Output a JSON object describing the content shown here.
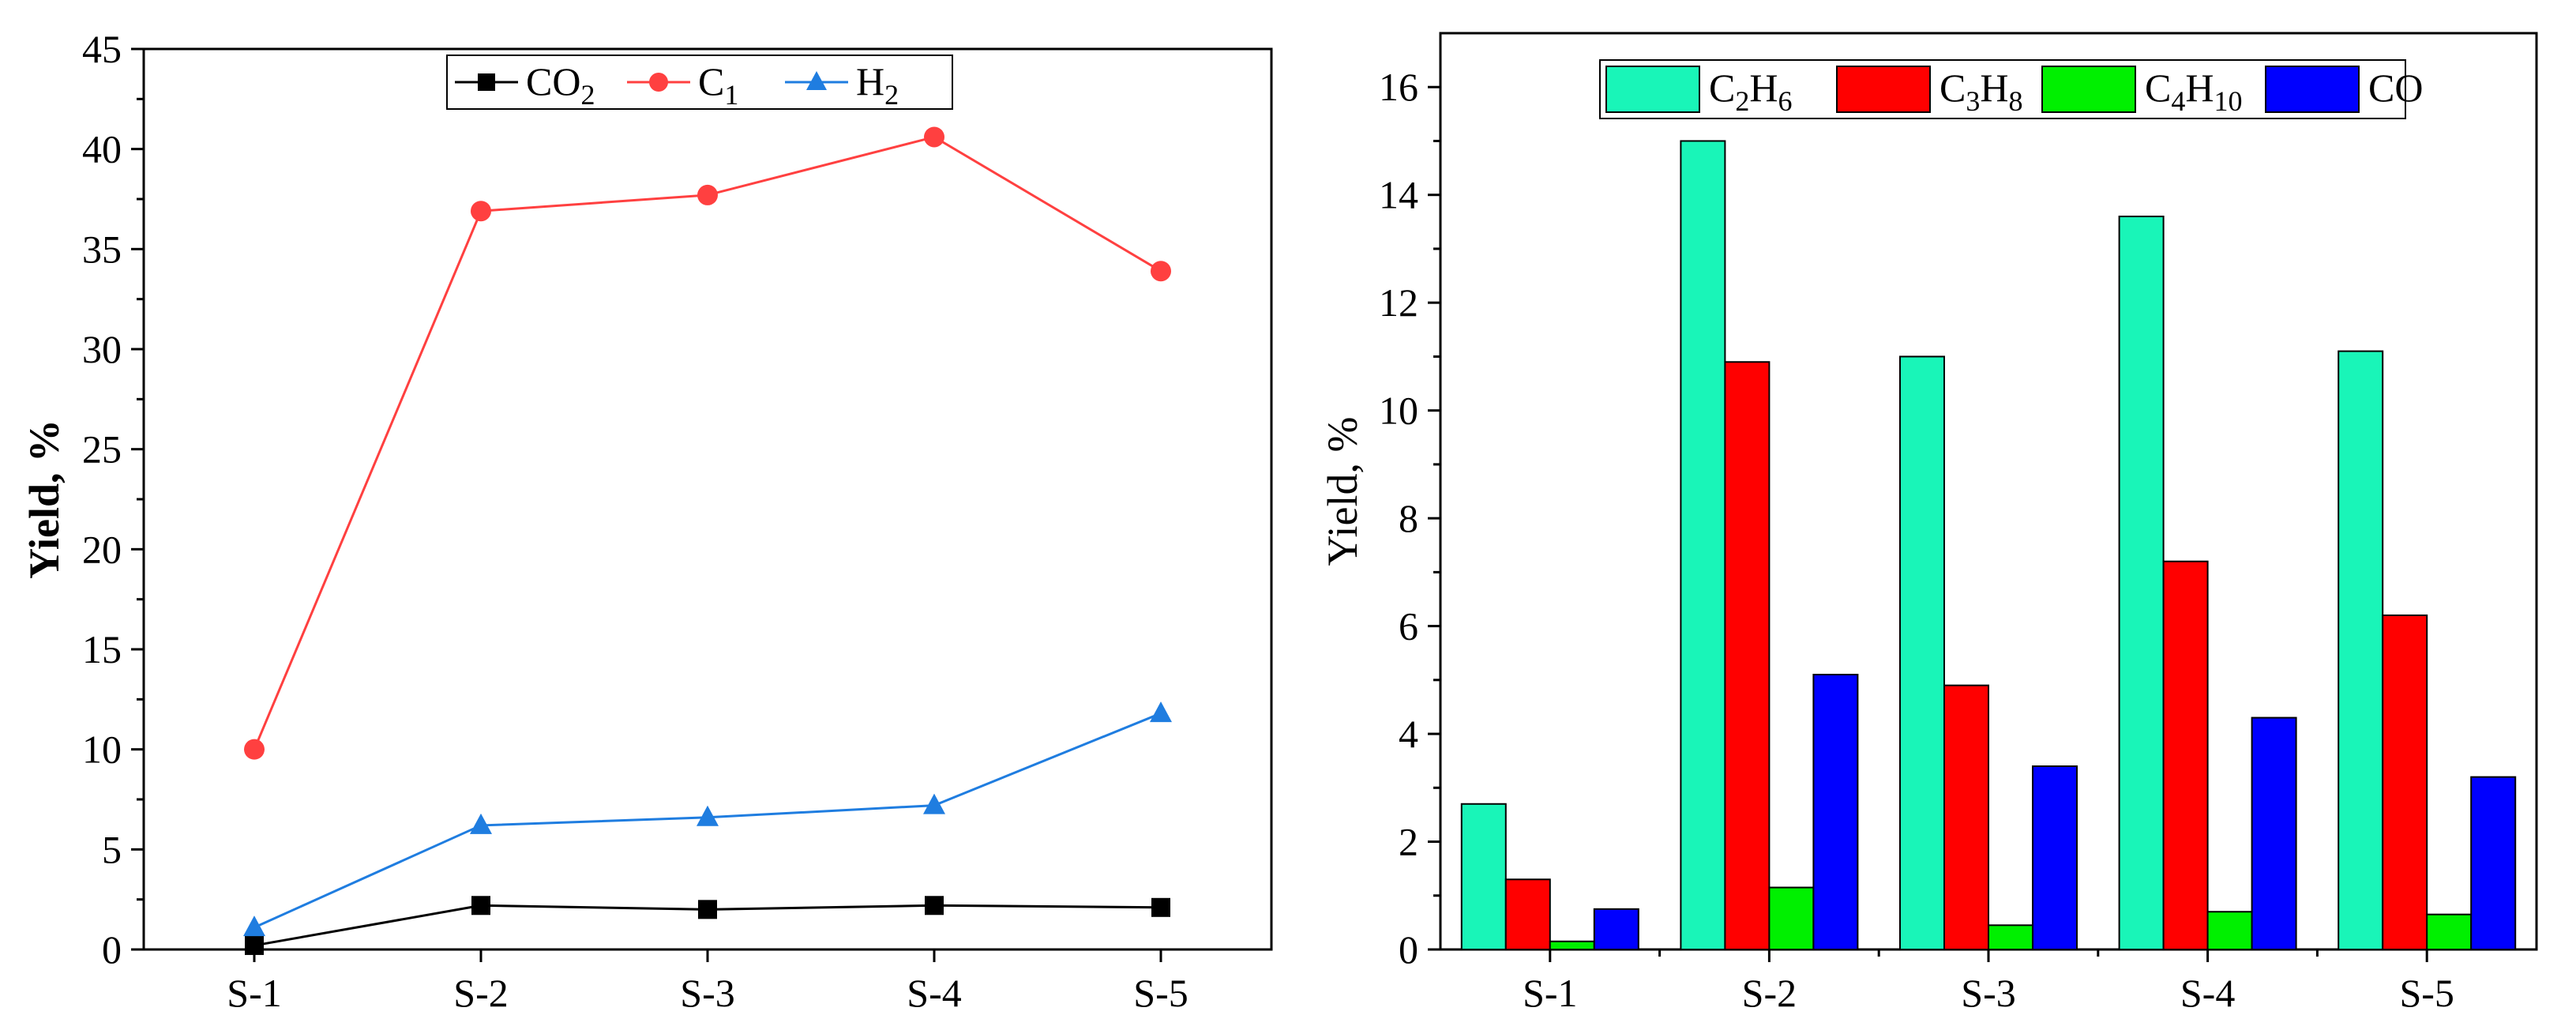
{
  "chart_data": [
    {
      "type": "line",
      "categories": [
        "S-1",
        "S-2",
        "S-3",
        "S-4",
        "S-5"
      ],
      "ylabel": "Yield, %",
      "xlabel": "",
      "ylim": [
        0,
        45
      ],
      "yticks": [
        0,
        5,
        10,
        15,
        20,
        25,
        30,
        35,
        40,
        45
      ],
      "legend_position": "top-center",
      "series": [
        {
          "name": "CO2",
          "base": "CO",
          "sub": "2",
          "color": "#000000",
          "marker": "square",
          "values": [
            0.2,
            2.2,
            2.0,
            2.2,
            2.1
          ]
        },
        {
          "name": "C1",
          "base": "C",
          "sub": "1",
          "color": "#ff4040",
          "marker": "circle",
          "values": [
            10.0,
            36.9,
            37.7,
            40.6,
            33.9
          ]
        },
        {
          "name": "H2",
          "base": "H",
          "sub": "2",
          "color": "#1f7de0",
          "marker": "triangle",
          "values": [
            1.1,
            6.2,
            6.6,
            7.2,
            11.8
          ]
        }
      ]
    },
    {
      "type": "bar",
      "categories": [
        "S-1",
        "S-2",
        "S-3",
        "S-4",
        "S-5"
      ],
      "ylabel": "Yield, %",
      "xlabel": "",
      "ylim": [
        0,
        17
      ],
      "yticks": [
        0,
        2,
        4,
        6,
        8,
        10,
        12,
        14,
        16
      ],
      "legend_position": "top",
      "series": [
        {
          "name": "C2H6",
          "parts": [
            [
              "C",
              ""
            ],
            [
              "2",
              "sub"
            ],
            [
              "H",
              ""
            ],
            [
              "6",
              "sub"
            ]
          ],
          "color": "#19f5b8",
          "values": [
            2.7,
            15.0,
            11.0,
            13.6,
            11.1
          ]
        },
        {
          "name": "C3H8",
          "parts": [
            [
              "C",
              ""
            ],
            [
              "3",
              "sub"
            ],
            [
              "H",
              ""
            ],
            [
              "8",
              "sub"
            ]
          ],
          "color": "#ff0000",
          "values": [
            1.3,
            10.9,
            4.9,
            7.2,
            6.2
          ]
        },
        {
          "name": "C4H10",
          "parts": [
            [
              "C",
              ""
            ],
            [
              "4",
              "sub"
            ],
            [
              "H",
              ""
            ],
            [
              "10",
              "sub"
            ]
          ],
          "color": "#00f000",
          "values": [
            0.15,
            1.15,
            0.45,
            0.7,
            0.65
          ]
        },
        {
          "name": "CO",
          "parts": [
            [
              "CO",
              ""
            ]
          ],
          "color": "#0000ff",
          "values": [
            0.75,
            5.1,
            3.4,
            4.3,
            3.2
          ]
        }
      ]
    }
  ]
}
